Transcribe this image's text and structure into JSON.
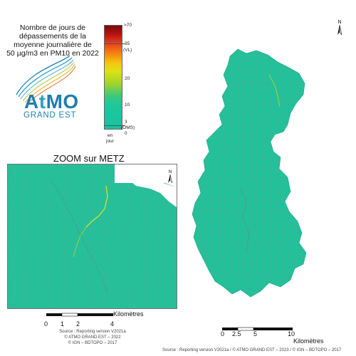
{
  "legend": {
    "title_lines": [
      "Nombre de jours de",
      "dépassements de la",
      "moyenne journalière de",
      "50 µg/m3 en PM10 en 2022"
    ],
    "ticks": [
      {
        "label": ">70"
      },
      {
        "label": "35"
      },
      {
        "label": "(VL)"
      },
      {
        "label": "20"
      },
      {
        "label": "10"
      },
      {
        "label": "3"
      },
      {
        "label": "(OMS)"
      },
      {
        "label": "0"
      }
    ],
    "unit_line1": "en",
    "unit_line2": "jour",
    "scale_values": [
      0,
      3,
      10,
      20,
      35,
      70
    ]
  },
  "logo": {
    "brand_a": "A",
    "brand_t": "t",
    "brand_rest": "MO",
    "subtitle": "GRAND EST"
  },
  "zoom": {
    "title": "ZOOM sur METZ",
    "scale": {
      "labels": [
        "0",
        "1",
        "2",
        "4"
      ],
      "unit": "Kilomètres"
    },
    "source_lines": [
      "Source : Reporting version V2021a",
      "© ATMO GRAND EST – 2022",
      "© IGN – BDTOPO – 2017"
    ]
  },
  "main_map": {
    "scale": {
      "labels": [
        "0",
        "2.5",
        "5",
        "10"
      ],
      "unit": "Kilomètres"
    },
    "source": "Source : Reporting version V2021a / © ATMO GRAND EST – 2023 / © IGN – BDTOPO – 2017"
  },
  "north": {
    "label": "N"
  },
  "colors": {
    "background": "#1dc39a",
    "roads": "#5aa89a",
    "hotspot_yellow": "#d8e21a",
    "hotspot_green": "#8fd43a"
  }
}
